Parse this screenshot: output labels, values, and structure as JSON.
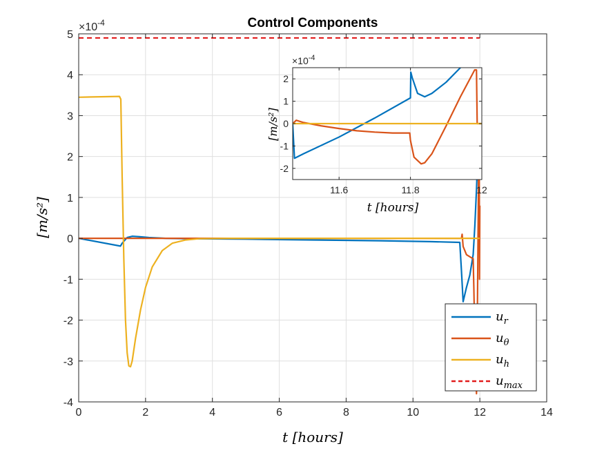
{
  "chart_data": [
    {
      "id": "main",
      "type": "line",
      "title": "Control Components",
      "xlabel": "t [hours]",
      "ylabel": "[m/s²]",
      "xlim": [
        0,
        14
      ],
      "ylim": [
        -4,
        5
      ],
      "y_exponent_label": "×10",
      "y_exponent_power": "-4",
      "xticks": [
        0,
        2,
        4,
        6,
        8,
        10,
        12,
        14
      ],
      "xtick_labels": [
        "0",
        "2",
        "4",
        "6",
        "8",
        "10",
        "12",
        "14"
      ],
      "yticks": [
        -4,
        -3,
        -2,
        -1,
        0,
        1,
        2,
        3,
        4,
        5
      ],
      "ytick_labels": [
        "-4",
        "-3",
        "-2",
        "-1",
        "0",
        "1",
        "2",
        "3",
        "4",
        "5"
      ],
      "grid": true,
      "legend_position": "bottom-right",
      "series": [
        {
          "name": "u_r",
          "label_base": "u",
          "label_sub": "r",
          "color": "#0072bd",
          "dash": false,
          "x": [
            0,
            1.25,
            1.3,
            1.45,
            1.6,
            1.8,
            2.1,
            2.6,
            3.2,
            5,
            7,
            9,
            10.5,
            11.4,
            11.45,
            11.5,
            11.6,
            11.7,
            11.8,
            11.85,
            11.9,
            11.95
          ],
          "y": [
            0,
            -0.19,
            -0.12,
            0.02,
            0.05,
            0.04,
            0.02,
            0,
            -0.01,
            -0.02,
            -0.04,
            -0.06,
            -0.08,
            -0.1,
            -0.8,
            -1.55,
            -1.2,
            -0.9,
            -0.4,
            0.3,
            1.2,
            2.3
          ]
        },
        {
          "name": "u_theta",
          "label_base": "u",
          "label_sub": "θ",
          "color": "#d95319",
          "dash": false,
          "x": [
            0,
            1.25,
            1.5,
            2,
            3,
            5,
            8,
            10,
            11.45,
            11.47,
            11.5,
            11.6,
            11.7,
            11.8,
            11.82,
            11.85,
            11.9,
            11.93,
            11.97,
            11.98,
            11.99,
            12.0
          ],
          "y": [
            0,
            0,
            0,
            0,
            0,
            0,
            0,
            0,
            0,
            0.1,
            -0.2,
            -0.4,
            -0.45,
            -0.5,
            -1.2,
            -2.5,
            -3.8,
            -1.5,
            2.4,
            2.4,
            -1.0,
            0.8
          ]
        },
        {
          "name": "u_h",
          "label_base": "u",
          "label_sub": "h",
          "color": "#edb120",
          "dash": false,
          "x": [
            0,
            1.22,
            1.26,
            1.3,
            1.35,
            1.4,
            1.45,
            1.5,
            1.55,
            1.6,
            1.7,
            1.85,
            2.0,
            2.2,
            2.5,
            2.8,
            3.2,
            3.6,
            4.5,
            8,
            12
          ],
          "y": [
            3.45,
            3.47,
            3.4,
            1.5,
            -0.5,
            -2.0,
            -2.8,
            -3.12,
            -3.14,
            -3.0,
            -2.45,
            -1.75,
            -1.2,
            -0.7,
            -0.3,
            -0.12,
            -0.04,
            -0.01,
            0,
            0,
            0
          ]
        },
        {
          "name": "u_max",
          "label_base": "u",
          "label_sub": "max",
          "color": "#e21c1c",
          "dash": true,
          "x": [
            0,
            12
          ],
          "y": [
            4.9,
            4.9
          ]
        }
      ]
    },
    {
      "id": "inset",
      "type": "line",
      "title": "",
      "xlabel": "t [hours]",
      "ylabel": "[m/s²]",
      "xlim": [
        11.47,
        12.0
      ],
      "ylim": [
        -2.5,
        2.5
      ],
      "y_exponent_label": "×10",
      "y_exponent_power": "-4",
      "xticks": [
        11.6,
        11.8,
        12.0
      ],
      "xtick_labels": [
        "11.6",
        "11.8",
        "12"
      ],
      "yticks": [
        -2,
        -1,
        0,
        1,
        2
      ],
      "ytick_labels": [
        "-2",
        "-1",
        "0",
        "1",
        "2"
      ],
      "grid": true,
      "series": [
        {
          "name": "u_r",
          "color": "#0072bd",
          "x": [
            11.47,
            11.475,
            11.5,
            11.6,
            11.7,
            11.8,
            11.801,
            11.805,
            11.82,
            11.84,
            11.86,
            11.9,
            11.94
          ],
          "y": [
            0,
            -1.55,
            -1.35,
            -0.6,
            0.25,
            1.15,
            2.3,
            2.05,
            1.35,
            1.2,
            1.35,
            1.85,
            2.5
          ]
        },
        {
          "name": "u_theta",
          "color": "#d95319",
          "x": [
            11.47,
            11.48,
            11.5,
            11.55,
            11.6,
            11.65,
            11.7,
            11.75,
            11.798,
            11.8,
            11.81,
            11.83,
            11.84,
            11.86,
            11.9,
            11.94,
            11.98,
            11.985,
            11.987,
            12.0
          ],
          "y": [
            0,
            0.15,
            0.05,
            -0.1,
            -0.22,
            -0.32,
            -0.38,
            -0.42,
            -0.42,
            -0.75,
            -1.5,
            -1.8,
            -1.75,
            -1.35,
            -0.1,
            1.2,
            2.4,
            2.4,
            0,
            0
          ]
        },
        {
          "name": "u_h",
          "color": "#edb120",
          "x": [
            11.47,
            12.0
          ],
          "y": [
            0,
            0
          ]
        }
      ]
    }
  ]
}
